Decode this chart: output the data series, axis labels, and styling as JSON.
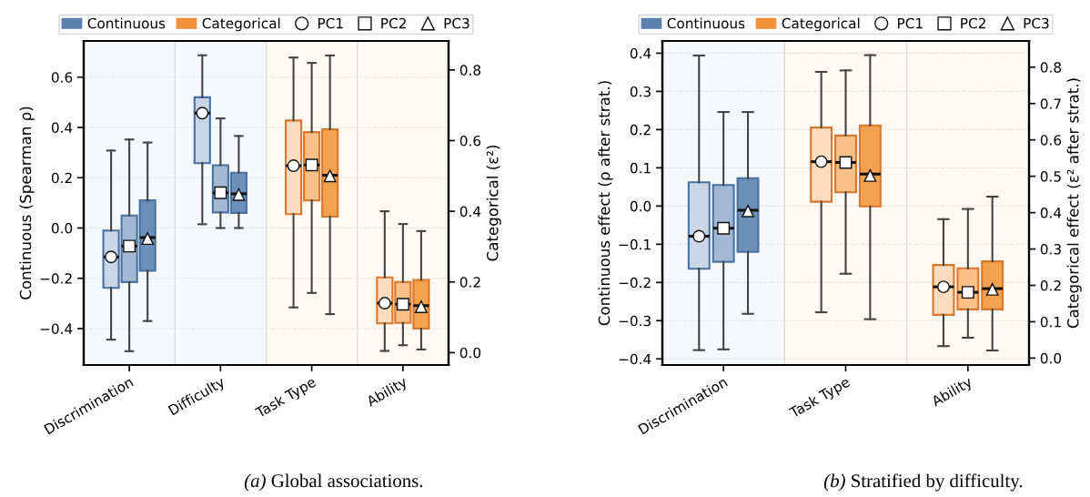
{
  "chart_data": [
    {
      "type": "box",
      "categories": [
        "Discrimination",
        "Difficulty",
        "Task Type",
        "Ability"
      ],
      "ylabel": "Continuous (Spearman ρ)",
      "y2label": "Categorical (ε²)",
      "ylim": [
        -0.545,
        0.744
      ],
      "yticks": [
        {
          "value": -0.4,
          "label": "−0.4"
        },
        {
          "value": -0.2,
          "label": "−0.2"
        },
        {
          "value": 0.0,
          "label": "0.0"
        },
        0.2,
        0.4,
        0.6
      ],
      "y2lim": [
        -0.035,
        0.882
      ],
      "y2ticks": [
        {
          "value": 0.0,
          "label": "0.0"
        },
        0.2,
        0.4,
        0.6,
        0.8
      ],
      "grid": "y",
      "legend": "top",
      "annotations": [
        "(a) Global associations."
      ],
      "series": [
        {
          "type": "bar",
          "name": "Continuous",
          "color": "#5b80ab",
          "values": [
            null,
            null,
            null,
            null
          ]
        },
        {
          "type": "bar",
          "name": "Categorical",
          "color": "#f0923a",
          "values": [
            null,
            null,
            null,
            null
          ]
        },
        {
          "type": "scatter",
          "name": "PC1",
          "color": "#ffffff",
          "marker": "circle",
          "values": [
            null,
            null,
            null,
            null
          ]
        },
        {
          "type": "scatter",
          "name": "PC2",
          "color": "#ffffff",
          "marker": "square",
          "values": [
            null,
            null,
            null,
            null
          ]
        },
        {
          "type": "scatter",
          "name": "PC3",
          "color": "#ffffff",
          "marker": "triangle",
          "values": [
            null,
            null,
            null,
            null
          ]
        },
        {
          "axis": "y",
          "color": "#c9d6e6",
          "marker": "circle",
          "boxes": [
            {
              "low": -0.444,
              "q1": -0.238,
              "median": -0.115,
              "q3": -0.01,
              "high": 0.308,
              "mean": -0.115
            },
            {
              "low": 0.015,
              "q1": 0.258,
              "median": 0.457,
              "q3": 0.52,
              "high": 0.687,
              "mean": 0.457
            },
            null,
            null
          ]
        },
        {
          "axis": "y",
          "color": "#a3b8d2",
          "marker": "square",
          "boxes": [
            {
              "low": -0.49,
              "q1": -0.215,
              "median": -0.072,
              "q3": 0.05,
              "high": 0.352,
              "mean": -0.072
            },
            {
              "low": 0.0,
              "q1": 0.062,
              "median": 0.14,
              "q3": 0.25,
              "high": 0.436,
              "mean": 0.14
            },
            null,
            null
          ]
        },
        {
          "axis": "y",
          "color": "#6c8fb8",
          "marker": "triangle",
          "boxes": [
            {
              "low": -0.37,
              "q1": -0.17,
              "median": -0.038,
              "q3": 0.11,
              "high": 0.34,
              "mean": -0.042
            },
            {
              "low": 0.0,
              "q1": 0.06,
              "median": 0.136,
              "q3": 0.22,
              "high": 0.366,
              "mean": 0.133
            },
            null,
            null
          ]
        },
        {
          "axis": "y2",
          "color": "#fddcbf",
          "marker": "circle",
          "boxes": [
            null,
            null,
            {
              "low": 0.128,
              "q1": 0.392,
              "median": 0.529,
              "q3": 0.657,
              "high": 0.835,
              "mean": 0.529
            },
            {
              "low": 0.005,
              "q1": 0.083,
              "median": 0.14,
              "q3": 0.213,
              "high": 0.4,
              "mean": 0.14
            }
          ]
        },
        {
          "axis": "y2",
          "color": "#f9c088",
          "marker": "square",
          "boxes": [
            null,
            null,
            {
              "low": 0.169,
              "q1": 0.431,
              "median": 0.531,
              "q3": 0.624,
              "high": 0.82,
              "mean": 0.531
            },
            {
              "low": 0.021,
              "q1": 0.084,
              "median": 0.137,
              "q3": 0.2,
              "high": 0.364,
              "mean": 0.137
            }
          ]
        },
        {
          "axis": "y2",
          "color": "#f4a14f",
          "marker": "triangle",
          "boxes": [
            null,
            null,
            {
              "low": 0.109,
              "q1": 0.385,
              "median": 0.502,
              "q3": 0.632,
              "high": 0.841,
              "mean": 0.5
            },
            {
              "low": 0.009,
              "q1": 0.068,
              "median": 0.133,
              "q3": 0.206,
              "high": 0.344,
              "mean": 0.13
            }
          ]
        }
      ]
    },
    {
      "type": "box",
      "categories": [
        "Discrimination",
        "Task Type",
        "Ability"
      ],
      "ylabel": "Continuous effect (ρ after strat.)",
      "y2label": "Categorical effect (ε² after strat.)",
      "ylim": [
        -0.416,
        0.432
      ],
      "yticks": [
        {
          "value": -0.4,
          "label": "−0.4"
        },
        {
          "value": -0.3,
          "label": "−0.3"
        },
        {
          "value": -0.2,
          "label": "−0.2"
        },
        {
          "value": -0.1,
          "label": "−0.1"
        },
        {
          "value": 0.0,
          "label": "0.0"
        },
        0.1,
        0.2,
        0.3,
        0.4
      ],
      "y2lim": [
        -0.019,
        0.872
      ],
      "y2ticks": [
        {
          "value": 0.0,
          "label": "0.0"
        },
        0.1,
        0.2,
        0.3,
        0.4,
        0.5,
        0.6,
        0.7,
        0.8
      ],
      "grid": "y",
      "legend": "top",
      "annotations": [
        "(b) Stratified by difficulty."
      ],
      "series": [
        {
          "type": "bar",
          "name": "Continuous",
          "color": "#5b80ab",
          "values": [
            null,
            null,
            null
          ]
        },
        {
          "type": "bar",
          "name": "Categorical",
          "color": "#f0923a",
          "values": [
            null,
            null,
            null
          ]
        },
        {
          "type": "scatter",
          "name": "PC1",
          "color": "#ffffff",
          "marker": "circle",
          "values": [
            null,
            null,
            null
          ]
        },
        {
          "type": "scatter",
          "name": "PC2",
          "color": "#ffffff",
          "marker": "square",
          "values": [
            null,
            null,
            null
          ]
        },
        {
          "type": "scatter",
          "name": "PC3",
          "color": "#ffffff",
          "marker": "triangle",
          "values": [
            null,
            null,
            null
          ]
        },
        {
          "axis": "y",
          "color": "#c9d6e6",
          "marker": "circle",
          "boxes": [
            {
              "low": -0.377,
              "q1": -0.164,
              "median": -0.079,
              "q3": 0.062,
              "high": 0.394,
              "mean": -0.079
            },
            null,
            null
          ]
        },
        {
          "axis": "y",
          "color": "#a3b8d2",
          "marker": "square",
          "boxes": [
            {
              "low": -0.375,
              "q1": -0.146,
              "median": -0.058,
              "q3": 0.055,
              "high": 0.246,
              "mean": -0.058
            },
            null,
            null
          ]
        },
        {
          "axis": "y",
          "color": "#6c8fb8",
          "marker": "triangle",
          "boxes": [
            {
              "low": -0.282,
              "q1": -0.12,
              "median": -0.011,
              "q3": 0.073,
              "high": 0.246,
              "mean": -0.013
            },
            null,
            null
          ]
        },
        {
          "axis": "y2",
          "color": "#fddcbf",
          "marker": "circle",
          "boxes": [
            null,
            {
              "low": 0.126,
              "q1": 0.43,
              "median": 0.54,
              "q3": 0.634,
              "high": 0.787,
              "mean": 0.54
            },
            {
              "low": 0.033,
              "q1": 0.119,
              "median": 0.196,
              "q3": 0.256,
              "high": 0.382,
              "mean": 0.196
            }
          ]
        },
        {
          "axis": "y2",
          "color": "#f9c088",
          "marker": "square",
          "boxes": [
            null,
            {
              "low": 0.232,
              "q1": 0.456,
              "median": 0.538,
              "q3": 0.612,
              "high": 0.791,
              "mean": 0.538
            },
            {
              "low": 0.056,
              "q1": 0.134,
              "median": 0.181,
              "q3": 0.247,
              "high": 0.41,
              "mean": 0.181
            }
          ]
        },
        {
          "axis": "y2",
          "color": "#f4a14f",
          "marker": "triangle",
          "boxes": [
            null,
            {
              "low": 0.107,
              "q1": 0.417,
              "median": 0.506,
              "q3": 0.64,
              "high": 0.833,
              "mean": 0.502
            },
            {
              "low": 0.021,
              "q1": 0.134,
              "median": 0.191,
              "q3": 0.266,
              "high": 0.444,
              "mean": 0.189
            }
          ]
        }
      ]
    }
  ]
}
